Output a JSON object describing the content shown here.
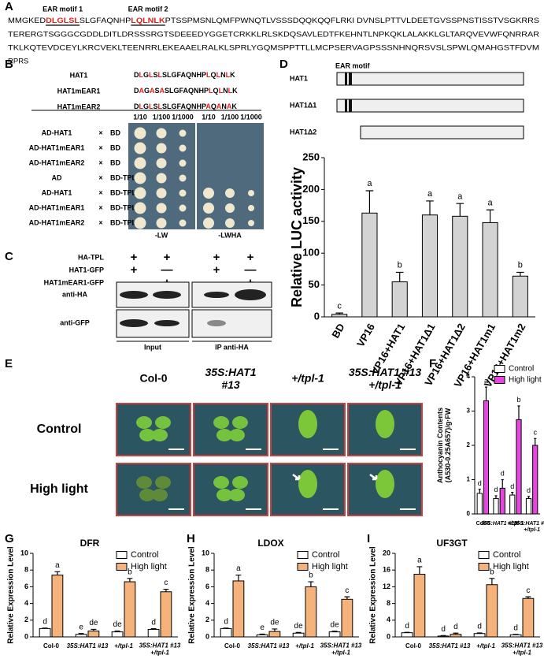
{
  "panel_labels": [
    "A",
    "B",
    "C",
    "D",
    "E",
    "F",
    "G",
    "H",
    "I"
  ],
  "sequence": {
    "motif_labels": [
      "EAR motif 1",
      "EAR motif 2"
    ],
    "line1": [
      "MMGKED",
      "DLGLSL",
      "SLGFAQNHP",
      "LQLNLK",
      "PTSSPMSNLQMFPWNQTLVSSSDQQKQQFLRKI DVNSLPTTVLDEETGVSSPNSTISSTVSGKRRS"
    ],
    "lines": [
      "TERERGTSGGGCGDDLDITLDRSSSRGTSDEEEDYGGETCRKKLRLSKDQSAVLEDTFKEHNTLNPKQKLALAKKLGLTARQVEVWFQNRRAR",
      "TKLKQTEVDCEYLKRCVEKLTEENRRLEKEAAELRALKLSPRLYGQMSPPTTLLMCPSERVAGPSSSNHNQRSVSLSPWLQMAHGSTFDVM",
      "RPRS"
    ]
  },
  "yeast": {
    "constructs": [
      {
        "name": "HAT1",
        "segments": [
          {
            "text": "D",
            "red": false
          },
          {
            "text": "L",
            "red": true
          },
          {
            "text": "G",
            "red": false
          },
          {
            "text": "L",
            "red": true
          },
          {
            "text": "S",
            "red": false
          },
          {
            "text": "L",
            "red": true
          },
          {
            "text": "SLGFAQNHP",
            "red": false
          },
          {
            "text": "L",
            "red": true
          },
          {
            "text": "Q",
            "red": false
          },
          {
            "text": "L",
            "red": true
          },
          {
            "text": "N",
            "red": false
          },
          {
            "text": "L",
            "red": true
          },
          {
            "text": "K",
            "red": false
          }
        ]
      },
      {
        "name": "HAT1mEAR1",
        "segments": [
          {
            "text": "D",
            "red": false
          },
          {
            "text": "A",
            "red": true
          },
          {
            "text": "G",
            "red": false
          },
          {
            "text": "A",
            "red": true
          },
          {
            "text": "S",
            "red": false
          },
          {
            "text": "A",
            "red": true
          },
          {
            "text": "SLGFAQNHP",
            "red": false
          },
          {
            "text": "L",
            "red": true
          },
          {
            "text": "Q",
            "red": false
          },
          {
            "text": "L",
            "red": true
          },
          {
            "text": "N",
            "red": false
          },
          {
            "text": "L",
            "red": true
          },
          {
            "text": "K",
            "red": false
          }
        ]
      },
      {
        "name": "HAT1mEAR2",
        "segments": [
          {
            "text": "D",
            "red": false
          },
          {
            "text": "L",
            "red": true
          },
          {
            "text": "G",
            "red": false
          },
          {
            "text": "L",
            "red": true
          },
          {
            "text": "S",
            "red": false
          },
          {
            "text": "L",
            "red": true
          },
          {
            "text": "SLGFAQNHP",
            "red": false
          },
          {
            "text": "A",
            "red": true
          },
          {
            "text": "Q",
            "red": false
          },
          {
            "text": "A",
            "red": true
          },
          {
            "text": "N",
            "red": false
          },
          {
            "text": "A",
            "red": true
          },
          {
            "text": "K",
            "red": false
          }
        ]
      }
    ],
    "dilutions": [
      "1/10",
      "1/100",
      "1/1000",
      "1/10",
      "1/100",
      "1/1000"
    ],
    "rows": [
      {
        "ad": "AD-HAT1",
        "cross": "×",
        "bd": "BD"
      },
      {
        "ad": "AD-HAT1mEAR1",
        "cross": "×",
        "bd": "BD"
      },
      {
        "ad": "AD-HAT1mEAR2",
        "cross": "×",
        "bd": "BD"
      },
      {
        "ad": "AD",
        "cross": "×",
        "bd": "BD-TPL"
      },
      {
        "ad": "AD-HAT1",
        "cross": "×",
        "bd": "BD-TPL"
      },
      {
        "ad": "AD-HAT1mEAR1",
        "cross": "×",
        "bd": "BD-TPL"
      },
      {
        "ad": "AD-HAT1mEAR2",
        "cross": "×",
        "bd": "BD-TPL"
      }
    ],
    "media": [
      "-LW",
      "-LWHA"
    ]
  },
  "coip": {
    "rows": [
      {
        "label": "HA-TPL",
        "signs": [
          "+",
          "+",
          "+",
          "+"
        ]
      },
      {
        "label": "HAT1-GFP",
        "signs": [
          "+",
          "—",
          "+",
          "—"
        ]
      },
      {
        "label": "HAT1mEAR1-GFP",
        "signs": [
          "—",
          "+",
          "—",
          "+"
        ]
      }
    ],
    "blots": [
      "anti-HA",
      "anti-GFP"
    ],
    "groups": [
      "Input",
      "IP anti-HA"
    ]
  },
  "domains": {
    "motif_label": "EAR motif",
    "proteins": [
      "HAT1",
      "HAT1Δ1",
      "HAT1Δ2"
    ]
  },
  "phenotype": {
    "genotypes": [
      "Col-0",
      "35S:HAT1\n#13",
      "+/tpl-1",
      "35S:HAT1 #13\n+/tpl-1"
    ],
    "conditions": [
      "Control",
      "High light"
    ]
  },
  "chart_data": [
    {
      "type": "bar",
      "ylabel": "Relative LUC activity",
      "categories": [
        "BD",
        "VP16",
        "VP16+HAT1",
        "VP16+HAT1Δ1",
        "VP16+HAT1Δ2",
        "VP16+HAT1m1",
        "VP16+HAT1m2"
      ],
      "values": [
        4,
        163,
        55,
        160,
        158,
        148,
        64
      ],
      "errors": [
        2,
        35,
        15,
        22,
        20,
        20,
        6
      ],
      "letters": [
        "c",
        "a",
        "b",
        "a",
        "a",
        "a",
        "b"
      ],
      "color": "#d3d3d3",
      "ylim": [
        0,
        250
      ],
      "yticks": [
        0,
        50,
        100,
        150,
        200,
        250
      ],
      "grid": false
    },
    {
      "type": "bar",
      "ylabel": "Anthocyanin Contents\n(A530-0.25A657)/g·FW",
      "categories": [
        "Col-0",
        "35S:HAT1 #13",
        "+/tpl-1",
        "35S:HAT1 #13\n+/tpl-1"
      ],
      "series": [
        {
          "name": "Control",
          "color": "#ffffff",
          "values": [
            0.6,
            0.45,
            0.55,
            0.45
          ],
          "errors": [
            0.12,
            0.08,
            0.08,
            0.06
          ],
          "letters": [
            "d",
            "d",
            "d",
            "d"
          ]
        },
        {
          "name": "High light",
          "color": "#e645e0",
          "values": [
            3.3,
            0.75,
            2.75,
            2.0
          ],
          "errors": [
            0.4,
            0.25,
            0.4,
            0.2
          ],
          "letters": [
            "a",
            "d",
            "b",
            "c"
          ]
        }
      ],
      "ylim": [
        0,
        4
      ],
      "yticks": [
        0,
        1,
        2,
        3,
        4
      ],
      "grid": false,
      "legend": "upper right"
    },
    {
      "type": "bar",
      "title": "DFR",
      "ylabel": "Relative Expression Level",
      "categories": [
        "Col-0",
        "35S:HAT1 #13",
        "+/tpl-1",
        "35S:HAT1 #13\n+/tpl-1"
      ],
      "series": [
        {
          "name": "Control",
          "color": "#ffffff",
          "values": [
            1.0,
            0.3,
            0.6,
            0.9
          ],
          "errors": [
            0.05,
            0.1,
            0.1,
            0.08
          ],
          "letters": [
            "d",
            "e",
            "de",
            "d"
          ]
        },
        {
          "name": "High light",
          "color": "#f5b27a",
          "values": [
            7.4,
            0.7,
            6.6,
            5.4
          ],
          "errors": [
            0.4,
            0.2,
            0.4,
            0.3
          ],
          "letters": [
            "a",
            "de",
            "b",
            "c"
          ]
        }
      ],
      "ylim": [
        0,
        10
      ],
      "yticks": [
        0,
        2,
        4,
        6,
        8,
        10
      ],
      "grid": false,
      "legend": "upper right"
    },
    {
      "type": "bar",
      "title": "LDOX",
      "ylabel": "Relative Expression Level",
      "categories": [
        "Col-0",
        "35S:HAT1 #13",
        "+/tpl-1",
        "35S:HAT1 #13\n+/tpl-1"
      ],
      "series": [
        {
          "name": "Control",
          "color": "#ffffff",
          "values": [
            1.0,
            0.25,
            0.45,
            0.6
          ],
          "errors": [
            0.05,
            0.08,
            0.08,
            0.08
          ],
          "letters": [
            "d",
            "e",
            "de",
            "de"
          ]
        },
        {
          "name": "High light",
          "color": "#f5b27a",
          "values": [
            6.7,
            0.65,
            6.0,
            4.5
          ],
          "errors": [
            0.7,
            0.3,
            0.6,
            0.3
          ],
          "letters": [
            "a",
            "de",
            "b",
            "c"
          ]
        }
      ],
      "ylim": [
        0,
        10
      ],
      "yticks": [
        0,
        2,
        4,
        6,
        8,
        10
      ],
      "grid": false,
      "legend": "upper right"
    },
    {
      "type": "bar",
      "title": "UF3GT",
      "ylabel": "Relative Expression Level",
      "categories": [
        "Col-0",
        "35S:HAT1 #13",
        "+/tpl-1",
        "35S:HAT1 #13\n+/tpl-1"
      ],
      "series": [
        {
          "name": "Control",
          "color": "#ffffff",
          "values": [
            1.0,
            0.2,
            0.8,
            0.5
          ],
          "errors": [
            0.1,
            0.1,
            0.15,
            0.1
          ],
          "letters": [
            "d",
            "d",
            "d",
            "d"
          ]
        },
        {
          "name": "High light",
          "color": "#f5b27a",
          "values": [
            15,
            0.6,
            12.5,
            9.2
          ],
          "errors": [
            1.8,
            0.3,
            1.5,
            0.4
          ],
          "letters": [
            "a",
            "d",
            "b",
            "c"
          ]
        }
      ],
      "ylim": [
        0,
        20
      ],
      "yticks": [
        0,
        4,
        8,
        12,
        16,
        20
      ],
      "grid": false,
      "legend": "upper right"
    }
  ]
}
